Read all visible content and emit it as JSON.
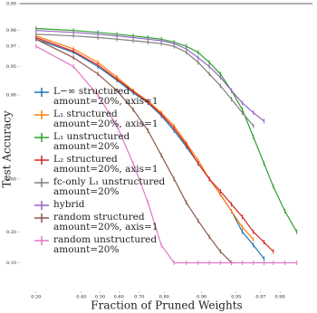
{
  "chart_data": {
    "type": "line",
    "xscale": "logit",
    "yscale": "logit",
    "xlabel": "Fraction of Pruned Weights",
    "ylabel": "Test Accuracy",
    "xlim": [
      0.15,
      0.99
    ],
    "ylim": [
      0.05,
      0.99
    ],
    "xticks": [
      {
        "value": 0.2,
        "label": "0.20"
      },
      {
        "value": 0.4,
        "label": "0.40"
      },
      {
        "value": 0.5,
        "label": "0.50"
      },
      {
        "value": 0.6,
        "label": "0.60"
      },
      {
        "value": 0.7,
        "label": "0.70"
      },
      {
        "value": 0.8,
        "label": "0.80"
      },
      {
        "value": 0.9,
        "label": "0.90"
      },
      {
        "value": 0.95,
        "label": "0.95"
      },
      {
        "value": 0.97,
        "label": "0.97"
      },
      {
        "value": 0.98,
        "label": "0.98"
      }
    ],
    "yticks": [
      {
        "value": 0.1,
        "label": "0.10"
      },
      {
        "value": 0.2,
        "label": "0.20"
      },
      {
        "value": 0.5,
        "label": "0.50"
      },
      {
        "value": 0.9,
        "label": "0.90"
      },
      {
        "value": 0.95,
        "label": "0.95"
      },
      {
        "value": 0.97,
        "label": "0.97"
      },
      {
        "value": 0.98,
        "label": "0.98"
      },
      0.99
    ],
    "x": [
      0.2,
      0.36,
      0.488,
      0.59,
      0.672,
      0.738,
      0.79,
      0.832,
      0.866,
      0.893,
      0.914,
      0.931,
      0.945,
      0.956,
      0.965,
      0.972,
      0.977,
      0.982,
      0.986
    ],
    "series": [
      {
        "name": "L−∞ structured\namount=20%, axis=1",
        "color": "#1f77b4",
        "values": [
          0.975,
          0.965,
          0.95,
          0.93,
          0.905,
          0.88,
          0.84,
          0.78,
          0.7,
          0.6,
          0.5,
          0.4,
          0.3,
          0.2,
          0.15,
          0.11,
          null,
          null,
          null
        ]
      },
      {
        "name": "L₁ structured\namount=20%, axis=1",
        "color": "#ff7f0e",
        "values": [
          0.977,
          0.968,
          0.955,
          0.935,
          0.91,
          0.885,
          0.85,
          0.8,
          0.72,
          0.62,
          0.5,
          0.4,
          0.3,
          0.22,
          0.17,
          null,
          null,
          null,
          null
        ]
      },
      {
        "name": "L₁ unstructured\namount=20%",
        "color": "#2ca02c",
        "values": [
          0.981,
          0.98,
          0.979,
          0.978,
          0.977,
          0.976,
          0.975,
          0.973,
          0.97,
          0.965,
          0.955,
          0.94,
          0.91,
          0.86,
          0.75,
          0.6,
          0.45,
          0.3,
          0.2
        ]
      },
      {
        "name": "L₂ structured\namount=20%, axis=1",
        "color": "#d62728",
        "values": [
          0.976,
          0.966,
          0.952,
          0.932,
          0.908,
          0.882,
          0.845,
          0.79,
          0.71,
          0.6,
          0.5,
          0.42,
          0.34,
          0.27,
          0.2,
          0.16,
          0.13,
          null,
          null
        ]
      },
      {
        "name": "fc-only L₁ unstructured\namount=20%",
        "color": "#7f7f7f",
        "values": [
          0.978,
          0.977,
          0.976,
          0.975,
          0.974,
          0.973,
          0.972,
          0.97,
          0.965,
          0.955,
          0.94,
          0.92,
          0.89,
          0.85,
          0.8,
          null,
          null,
          null,
          null
        ]
      },
      {
        "name": "hybrid",
        "color": "#9467bd",
        "values": [
          0.98,
          0.979,
          0.978,
          0.977,
          0.976,
          0.975,
          0.974,
          0.972,
          0.968,
          0.96,
          0.95,
          0.935,
          0.91,
          0.88,
          0.85,
          0.82,
          null,
          null,
          null
        ]
      },
      {
        "name": "random structured\namount=20%, axis=1",
        "color": "#8c564b",
        "values": [
          0.975,
          0.96,
          0.94,
          0.91,
          0.86,
          0.78,
          0.65,
          0.5,
          0.35,
          0.25,
          0.18,
          0.13,
          0.1,
          null,
          null,
          null,
          null,
          null,
          null
        ]
      },
      {
        "name": "random unstructured\namount=20%",
        "color": "#e377c2",
        "values": [
          0.97,
          0.95,
          0.9,
          0.8,
          0.6,
          0.35,
          0.15,
          0.1,
          0.1,
          0.1,
          0.1,
          0.1,
          0.1,
          0.1,
          0.1,
          0.1,
          0.1,
          0.1,
          0.1
        ]
      }
    ]
  }
}
